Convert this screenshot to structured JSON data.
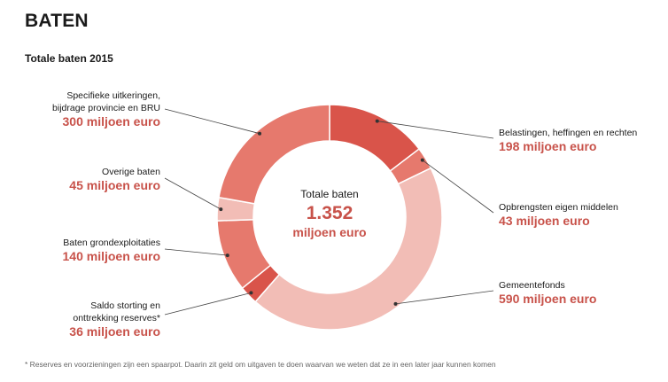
{
  "heading": "BATEN",
  "chart_data": {
    "type": "pie",
    "title": "Totale baten 2015",
    "center": {
      "title": "Totale baten",
      "value": "1.352",
      "unit": "miljoen euro",
      "total": 1352
    },
    "slices": [
      {
        "id": "belastingen",
        "label_lines": [
          "Belastingen, heffingen en rechten"
        ],
        "value": 198,
        "value_text": "198 miljoen euro",
        "color": "#d9544a"
      },
      {
        "id": "opbrengsten",
        "label_lines": [
          "Opbrengsten eigen middelen"
        ],
        "value": 43,
        "value_text": "43 miljoen euro",
        "color": "#e6796d"
      },
      {
        "id": "gemeentefonds",
        "label_lines": [
          "Gemeentefonds"
        ],
        "value": 590,
        "value_text": "590 miljoen euro",
        "color": "#f2bdb6"
      },
      {
        "id": "saldo",
        "label_lines": [
          "Saldo storting en",
          "onttrekking reserves*"
        ],
        "value": 36,
        "value_text": "36 miljoen euro",
        "color": "#d9544a"
      },
      {
        "id": "grondexploitaties",
        "label_lines": [
          "Baten grondexploitaties"
        ],
        "value": 140,
        "value_text": "140 miljoen euro",
        "color": "#e6796d"
      },
      {
        "id": "overige",
        "label_lines": [
          "Overige baten"
        ],
        "value": 45,
        "value_text": "45 miljoen euro",
        "color": "#f2bdb6"
      },
      {
        "id": "specifieke",
        "label_lines": [
          "Specifieke uitkeringen,",
          "bijdrage provincie en BRU"
        ],
        "value": 300,
        "value_text": "300  miljoen euro",
        "color": "#e6796d"
      }
    ]
  },
  "footnote": "* Reserves en voorzieningen zijn een spaarpot. Daarin zit geld om uitgaven te doen waarvan we weten dat ze in een later jaar kunnen komen"
}
